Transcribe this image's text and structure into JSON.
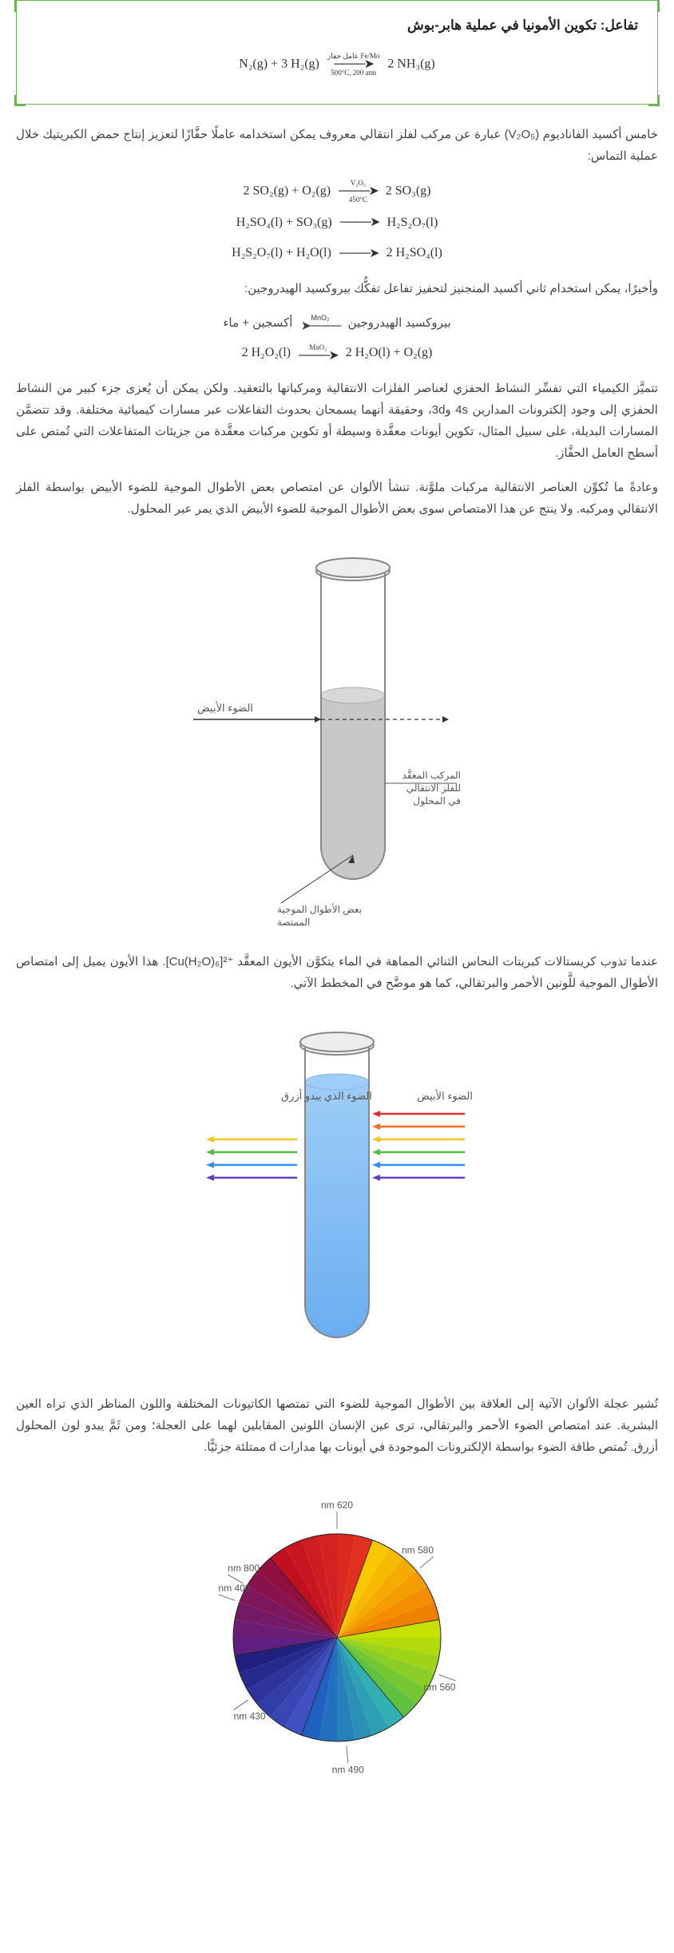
{
  "reaction_box": {
    "title": "تفاعل: تكوين الأمونيا في عملية هابر-بوش",
    "equation_left": "N₂(g) + 3 H₂(g)",
    "equation_arrow_top": "عامل حفاز Fe/Mo",
    "equation_arrow_bot": "500°C, 200 atm",
    "equation_right": "2 NH₃(g)"
  },
  "para1": "خامس أكسيد الفاناديوم (V₂O₅) عبارة عن مركب لفلز انتقالي معروف يمكن استخدامه عاملًا حفَّازًا لتعزيز إنتاج حمض الكبريتيك خلال عملية التماس:",
  "eq1": {
    "left": "2 SO₂(g) + O₂(g)",
    "top": "V₂O₅",
    "bot": "450°C",
    "right": "2 SO₃(g)"
  },
  "eq2": {
    "left": "H₂SO₄(l) + SO₃(g)",
    "right": "H₂S₂O₇(l)"
  },
  "eq3": {
    "left": "H₂S₂O₇(l) + H₂O(l)",
    "right": "2 H₂SO₄(l)"
  },
  "para2": "وأخيرًا، يمكن استخدام ثاني أكسيد المنجنيز لتحفيز تفاعل تفكُّك بيروكسيد الهيدروجين:",
  "word_eq": {
    "left": "أكسجين + ماء",
    "top": "MnO₂",
    "right": "بيروكسيد الهيدروجين"
  },
  "eq4": {
    "left": "2 H₂O₂(l)",
    "top": "MnO₂",
    "right": "2 H₂O(l) + O₂(g)"
  },
  "para3": "تتميَّز الكيمياء التي تفسِّر النشاط الحفزي لعناصر الفلزات الانتقالية ومركباتها بالتعقيد. ولكن يمكن أن يُعزى جزء كبير من النشاط الحفزي إلى وجود إلكترونات المدارين 4s و3d، وحقيقة أنهما يسمحان بحدوث التفاعلات عبر مسارات كيميائية مختلفة. وقد تتضمَّن المسارات البديلة، على سبيل المثال، تكوين أيونات معقَّدة وسيطة أو تكوين مركبات معقَّدة من جزيئات المتفاعلات التي تُمتص على أسطح العامل الحفَّاز.",
  "para4": "وعادةً ما تُكوِّن العناصر الانتقالية مركبات ملوَّنة. تنشأ الألوان عن امتصاص بعض الأطوال الموجية للضوء الأبيض بواسطة الفلز الانتقالي ومركبه. ولا ينتج عن هذا الامتصاص سوى بعض الأطوال الموجية للضوء الأبيض الذي يمر عبر المحلول.",
  "fig1": {
    "label_white_light": "الضوء الأبيض",
    "label_complex": "المركب المعقَّد للفلز الانتقالي في المحلول",
    "label_absorbed": "بعض الأطوال الموجية الممتصة",
    "liquid_color": "#c8c8c8",
    "tube_stroke": "#888888",
    "lip_fill": "#eeeeee"
  },
  "para5": "عندما تذوب كريستالات كبريتات النحاس الثنائي المماهة في الماء يتكوَّن الأيون المعقَّد ⁺²[Cu(H₂O)₆]. هذا الأيون يميل إلى امتصاص الأطوال الموجية للَّونين الأحمر والبرتقالي، كما هو موضَّح في المخطط الآتي.",
  "fig2": {
    "label_white_light": "الضوء الأبيض",
    "label_blue_light": "الضوء الذي يبدو أزرق",
    "liquid_color": "#6aaef0",
    "liquid_color_top": "#9ecdf7",
    "tube_stroke": "#888888",
    "rainbow": [
      "#e03030",
      "#f07020",
      "#f0c820",
      "#50c040",
      "#3090f0",
      "#6040c0"
    ]
  },
  "para6": "تُشير عجلة الألوان الآتية إلى العلاقة بين الأطوال الموجية للضوء التي تمتصها الكاتيونات المختلفة واللون المناظر الذي تراه العين البشرية. عند امتصاص الضوء الأحمر والبرتقالي، ترى عين الإنسان اللونين المقابلين لهما على العجلة؛ ومن ثَمَّ يبدو لون المحلول أزرق. تُمتص طاقة الضوء بواسطة الإلكترونات الموجودة في أيونات بها مدارات d ممتلئة جزئيًّا.",
  "wheel": {
    "labels": [
      {
        "text": "620 nm",
        "angle": -90
      },
      {
        "text": "580 nm",
        "angle": -40
      },
      {
        "text": "560 nm",
        "angle": 20
      },
      {
        "text": "490 nm",
        "angle": 85
      },
      {
        "text": "430 nm",
        "angle": 145
      },
      {
        "text": "400 nm",
        "angle": 200
      },
      {
        "text": "800 nm",
        "angle": 210
      }
    ],
    "segments": [
      {
        "start": -70,
        "end": -10,
        "c1": "#f9c800",
        "c2": "#f08000"
      },
      {
        "start": -10,
        "end": 50,
        "c1": "#c8e000",
        "c2": "#60c040"
      },
      {
        "start": 50,
        "end": 110,
        "c1": "#30b0b0",
        "c2": "#2060c0"
      },
      {
        "start": 110,
        "end": 170,
        "c1": "#4050c0",
        "c2": "#202080"
      },
      {
        "start": 170,
        "end": 230,
        "c1": "#602080",
        "c2": "#901040"
      },
      {
        "start": 230,
        "end": 290,
        "c1": "#c01020",
        "c2": "#e03020"
      }
    ],
    "radius": 130,
    "label_radius": 158
  }
}
